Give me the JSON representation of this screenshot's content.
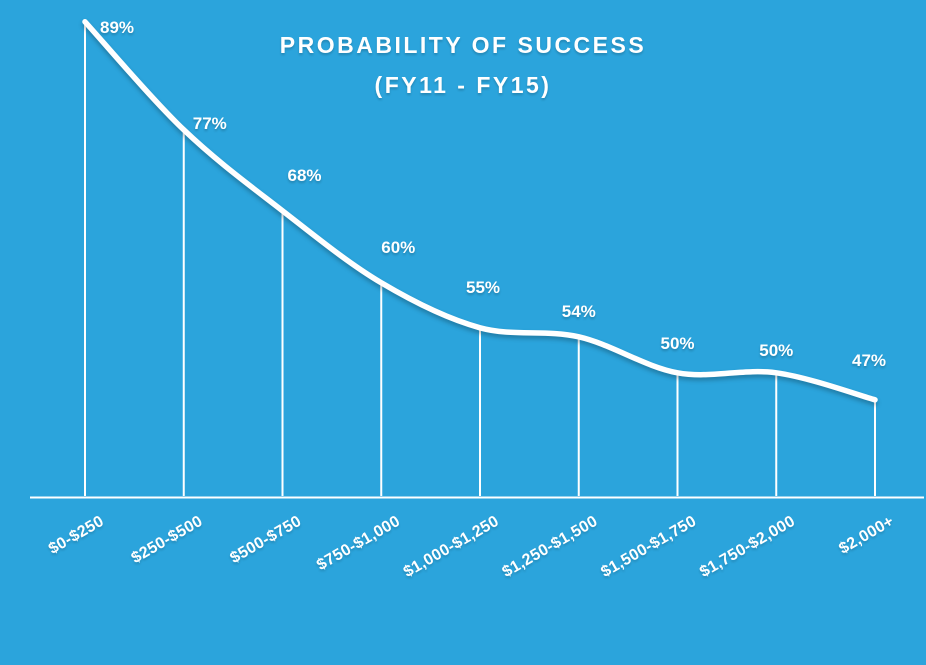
{
  "colors": {
    "background": "#2BA4DC",
    "line": "#FFFFFF",
    "text": "#FFFFFF"
  },
  "chart_data": {
    "type": "line",
    "title": "PROBABILITY OF SUCCESS",
    "subtitle": "(FY11 - FY15)",
    "categories": [
      "$0-$250",
      "$250-$500",
      "$500-$750",
      "$750-$1,000",
      "$1,000-$1,250",
      "$1,250-$1,500",
      "$1,500-$1,750",
      "$1,750-$2,000",
      "$2,000+"
    ],
    "values": [
      89,
      77,
      68,
      60,
      55,
      54,
      50,
      50,
      47
    ],
    "value_labels": [
      "89%",
      "77%",
      "68%",
      "60%",
      "55%",
      "54%",
      "50%",
      "50%",
      "47%"
    ],
    "xlabel": "",
    "ylabel": "",
    "ylim": [
      35,
      92
    ],
    "grid": false,
    "legend": false,
    "line_color": "#FFFFFF",
    "label_color": "#FFFFFF",
    "notes": "white line chart on blue background, vertical white drop lines from each point to x-axis, data labels above points, rotated category labels"
  }
}
